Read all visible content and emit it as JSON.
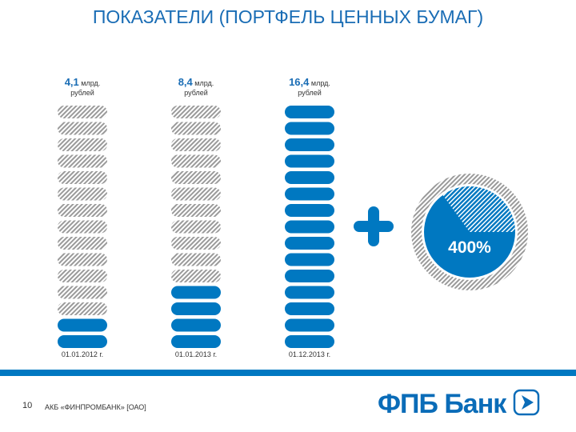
{
  "title": "ПОКАЗАТЕЛИ (ПОРТФЕЛЬ ЦЕННЫХ БУМАГ)",
  "colors": {
    "accent": "#0078c1",
    "hatch": "#9a9a9a"
  },
  "chart_data": {
    "type": "bar",
    "categories": [
      "01.01.2012 г.",
      "01.01.2013 г.",
      "01.12.2013 г."
    ],
    "values": [
      4.1,
      8.4,
      16.4
    ],
    "value_labels": [
      "4,1",
      "8,4",
      "16,4"
    ],
    "unit_line1": "млрд.",
    "unit_line2": "рублей",
    "filled_segments": [
      2,
      4,
      15
    ],
    "total_segments": 15,
    "growth_label": "400%",
    "growth_pie_fraction": 0.65
  },
  "footer": {
    "page_number": "10",
    "company": "АКБ «ФИНПРОМБАНК» [ОАО]",
    "logo_text": "ФПБ Банк"
  }
}
